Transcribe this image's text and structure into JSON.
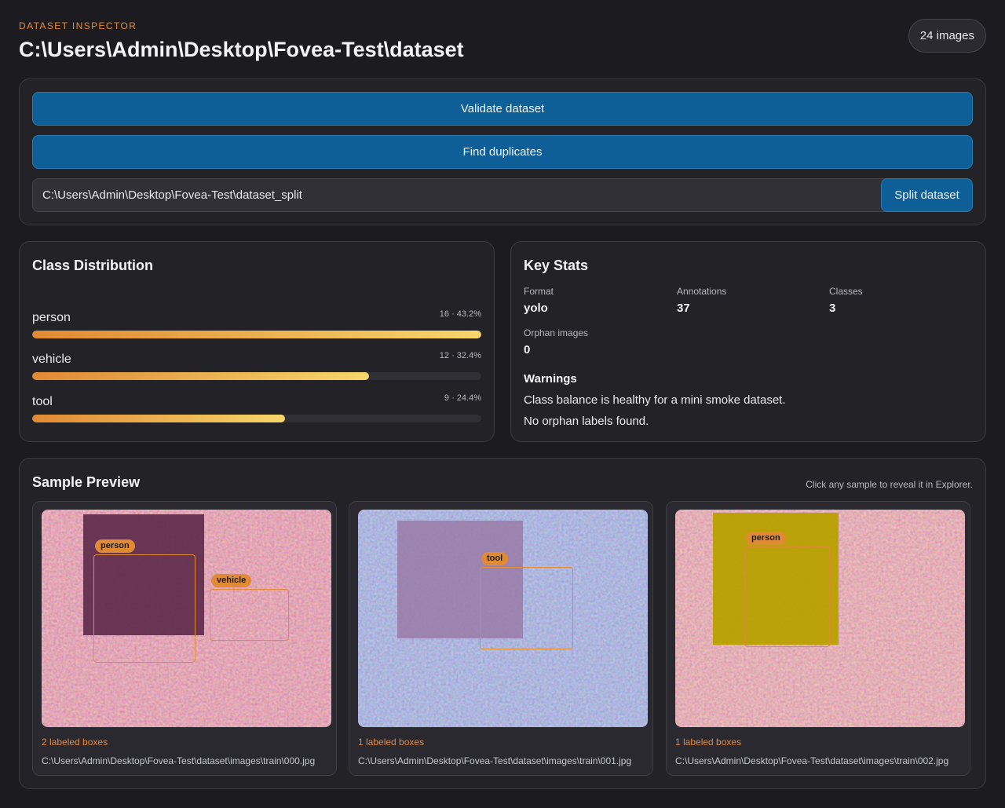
{
  "header": {
    "eyebrow": "DATASET INSPECTOR",
    "title": "C:\\Users\\Admin\\Desktop\\Fovea-Test\\dataset",
    "count_badge": "24 images"
  },
  "actions": {
    "validate_label": "Validate dataset",
    "duplicates_label": "Find duplicates",
    "split_path_value": "C:\\Users\\Admin\\Desktop\\Fovea-Test\\dataset_split",
    "split_label": "Split dataset"
  },
  "distribution": {
    "title": "Class Distribution",
    "classes": [
      {
        "name": "person",
        "meta": "16 · 43.2%",
        "count": 16,
        "percent": 43.2
      },
      {
        "name": "vehicle",
        "meta": "12 · 32.4%",
        "count": 12,
        "percent": 32.4
      },
      {
        "name": "tool",
        "meta": "9 · 24.4%",
        "count": 9,
        "percent": 24.4
      }
    ],
    "colors": {
      "bar_start": "#e08a34",
      "bar_end": "#f6d66a"
    }
  },
  "stats": {
    "title": "Key Stats",
    "items": [
      {
        "label": "Format",
        "value": "yolo"
      },
      {
        "label": "Annotations",
        "value": "37"
      },
      {
        "label": "Classes",
        "value": "3"
      },
      {
        "label": "Orphan images",
        "value": "0"
      }
    ],
    "warnings_title": "Warnings",
    "warnings": [
      "Class balance is healthy for a mini smoke dataset.",
      "No orphan labels found."
    ]
  },
  "preview": {
    "title": "Sample Preview",
    "hint": "Click any sample to reveal it in Explorer.",
    "samples": [
      {
        "boxes_text": "2 labeled boxes",
        "path": "C:\\Users\\Admin\\Desktop\\Fovea-Test\\dataset\\images\\train\\000.jpg",
        "labels": [
          "person",
          "vehicle"
        ]
      },
      {
        "boxes_text": "1 labeled boxes",
        "path": "C:\\Users\\Admin\\Desktop\\Fovea-Test\\dataset\\images\\train\\001.jpg",
        "labels": [
          "tool"
        ]
      },
      {
        "boxes_text": "1 labeled boxes",
        "path": "C:\\Users\\Admin\\Desktop\\Fovea-Test\\dataset\\images\\train\\002.jpg",
        "labels": [
          "person"
        ]
      }
    ]
  },
  "colors": {
    "accent": "#e8893a",
    "button": "#0e5f97",
    "background": "#1c1c20",
    "panel": "#222227"
  }
}
